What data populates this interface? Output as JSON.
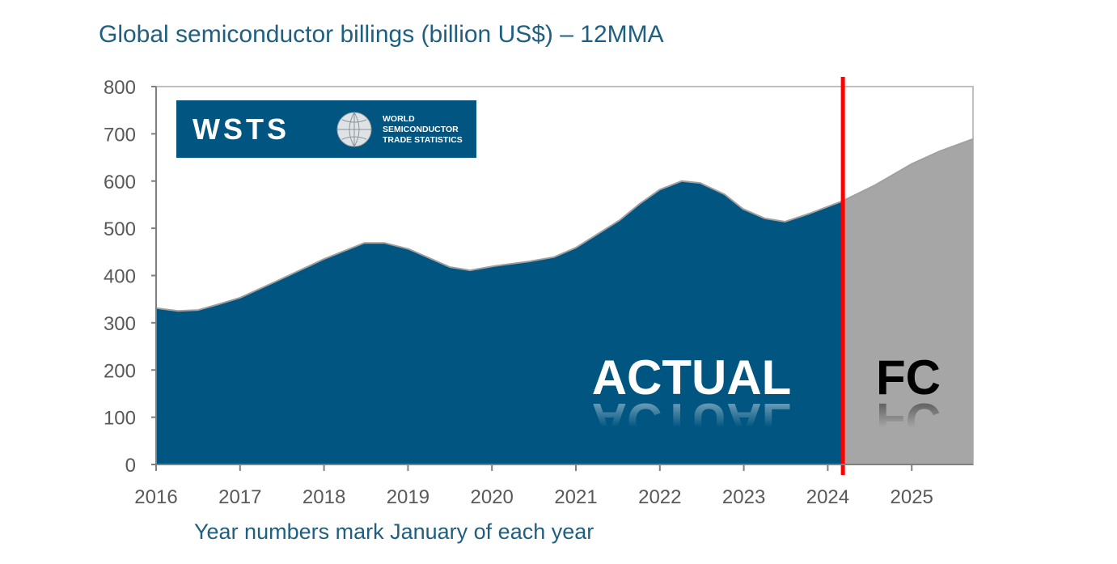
{
  "chart_data": {
    "type": "area",
    "title": "Global semiconductor billings (billion US$) – 12MMA",
    "xlabel": "Year numbers mark January of each year",
    "ylabel": "",
    "ylim": [
      0,
      800
    ],
    "xlim": [
      2016,
      2025.73
    ],
    "yticks": [
      "0",
      "100",
      "200",
      "300",
      "400",
      "500",
      "600",
      "700",
      "800"
    ],
    "xticks": [
      "2016",
      "2017",
      "2018",
      "2019",
      "2020",
      "2021",
      "2022",
      "2023",
      "2024",
      "2025"
    ],
    "grid": false,
    "divider_year": 2024.18,
    "region_labels": {
      "actual": "ACTUAL",
      "forecast": "FC"
    },
    "colors": {
      "actual": "#005581",
      "forecast": "#a6a6a6",
      "divider": "#ff0000",
      "title": "#1f5f80"
    },
    "series": [
      {
        "name": "ACTUAL",
        "x": [
          2016.0,
          2016.26,
          2016.5,
          2016.74,
          2017.0,
          2017.42,
          2018.0,
          2018.48,
          2018.72,
          2019.01,
          2019.5,
          2019.74,
          2020.03,
          2020.45,
          2020.74,
          2021.0,
          2021.52,
          2021.76,
          2022.0,
          2022.26,
          2022.48,
          2022.77,
          2022.99,
          2023.25,
          2023.49,
          2023.78,
          2024.18
        ],
        "values": [
          331,
          325,
          327,
          339,
          353,
          387,
          435,
          469,
          469,
          456,
          418,
          411,
          420,
          430,
          439,
          459,
          517,
          552,
          582,
          600,
          596,
          572,
          541,
          521,
          514,
          531,
          558
        ]
      },
      {
        "name": "FC",
        "x": [
          2024.18,
          2024.56,
          2025.0,
          2025.33,
          2025.73
        ],
        "values": [
          558,
          591,
          636,
          663,
          689
        ]
      }
    ]
  },
  "logo": {
    "text": "WSTS",
    "line1": "WORLD",
    "line2": "SEMICONDUCTOR",
    "line3": "TRADE STATISTICS"
  }
}
